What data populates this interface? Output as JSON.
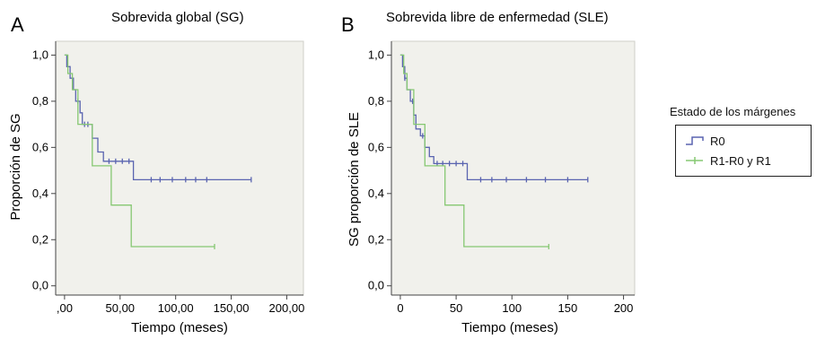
{
  "panels": [
    {
      "letter": "A",
      "title": "Sobrevida global (SG)",
      "ylabel": "Proporción de SG",
      "xlabel": "Tiempo (meses)",
      "xticks": [
        ",00",
        "50,00",
        "100,00",
        "150,00",
        "200,00"
      ],
      "yticks": [
        "0,0",
        "0,2",
        "0,4",
        "0,6",
        "0,8",
        "1,0"
      ]
    },
    {
      "letter": "B",
      "title": "Sobrevida libre de enfermedad (SLE)",
      "ylabel": "SG proporción de SLE",
      "xlabel": "Tiempo (meses)",
      "xticks": [
        "0",
        "50",
        "100",
        "150",
        "200"
      ],
      "yticks": [
        "0,0",
        "0,2",
        "0,4",
        "0,6",
        "0,8",
        "1,0"
      ]
    }
  ],
  "legend": {
    "title": "Estado de los márgenes",
    "items": [
      {
        "label": "R0",
        "color": "#5a64b0"
      },
      {
        "label": "R1-R0 y R1",
        "color": "#86c872"
      }
    ]
  },
  "colors": {
    "plot_bg": "#f1f1ec",
    "axis": "#444444"
  },
  "chart_data": [
    {
      "type": "line",
      "subtype": "kaplan-meier step",
      "title": "Sobrevida global (SG)",
      "xlabel": "Tiempo (meses)",
      "ylabel": "Proporción de SG",
      "xlim": [
        -8,
        215
      ],
      "ylim": [
        -0.04,
        1.06
      ],
      "series": [
        {
          "name": "R0",
          "steps": [
            [
              0,
              1.0
            ],
            [
              2,
              0.95
            ],
            [
              5,
              0.9
            ],
            [
              8,
              0.85
            ],
            [
              10,
              0.8
            ],
            [
              14,
              0.75
            ],
            [
              16,
              0.7
            ],
            [
              25,
              0.64
            ],
            [
              30,
              0.58
            ],
            [
              35,
              0.54
            ],
            [
              62,
              0.46
            ],
            [
              168,
              0.46
            ]
          ],
          "censored": [
            [
              12,
              0.8
            ],
            [
              18,
              0.7
            ],
            [
              21,
              0.7
            ],
            [
              40,
              0.54
            ],
            [
              46,
              0.54
            ],
            [
              52,
              0.54
            ],
            [
              58,
              0.54
            ],
            [
              78,
              0.46
            ],
            [
              86,
              0.46
            ],
            [
              97,
              0.46
            ],
            [
              109,
              0.46
            ],
            [
              118,
              0.46
            ],
            [
              128,
              0.46
            ],
            [
              168,
              0.46
            ]
          ]
        },
        {
          "name": "R1-R0 y R1",
          "steps": [
            [
              0,
              1.0
            ],
            [
              3,
              0.92
            ],
            [
              7,
              0.85
            ],
            [
              12,
              0.7
            ],
            [
              25,
              0.52
            ],
            [
              42,
              0.35
            ],
            [
              60,
              0.17
            ],
            [
              135,
              0.17
            ]
          ],
          "censored": [
            [
              135,
              0.17
            ]
          ]
        }
      ]
    },
    {
      "type": "line",
      "subtype": "kaplan-meier step",
      "title": "Sobrevida libre de enfermedad (SLE)",
      "xlabel": "Tiempo (meses)",
      "ylabel": "SG proporción de SLE",
      "xlim": [
        -8,
        210
      ],
      "ylim": [
        -0.04,
        1.06
      ],
      "series": [
        {
          "name": "R0",
          "steps": [
            [
              0,
              1.0
            ],
            [
              2,
              0.95
            ],
            [
              4,
              0.9
            ],
            [
              6,
              0.85
            ],
            [
              9,
              0.8
            ],
            [
              12,
              0.74
            ],
            [
              14,
              0.68
            ],
            [
              18,
              0.65
            ],
            [
              22,
              0.6
            ],
            [
              26,
              0.56
            ],
            [
              30,
              0.53
            ],
            [
              60,
              0.46
            ],
            [
              168,
              0.46
            ]
          ],
          "censored": [
            [
              4,
              0.9
            ],
            [
              11,
              0.8
            ],
            [
              20,
              0.65
            ],
            [
              33,
              0.53
            ],
            [
              38,
              0.53
            ],
            [
              44,
              0.53
            ],
            [
              50,
              0.53
            ],
            [
              56,
              0.53
            ],
            [
              72,
              0.46
            ],
            [
              82,
              0.46
            ],
            [
              95,
              0.46
            ],
            [
              113,
              0.46
            ],
            [
              130,
              0.46
            ],
            [
              150,
              0.46
            ],
            [
              168,
              0.46
            ]
          ]
        },
        {
          "name": "R1-R0 y R1",
          "steps": [
            [
              0,
              1.0
            ],
            [
              3,
              0.92
            ],
            [
              6,
              0.85
            ],
            [
              12,
              0.7
            ],
            [
              22,
              0.52
            ],
            [
              40,
              0.35
            ],
            [
              57,
              0.17
            ],
            [
              133,
              0.17
            ]
          ],
          "censored": [
            [
              133,
              0.17
            ]
          ]
        }
      ]
    }
  ]
}
